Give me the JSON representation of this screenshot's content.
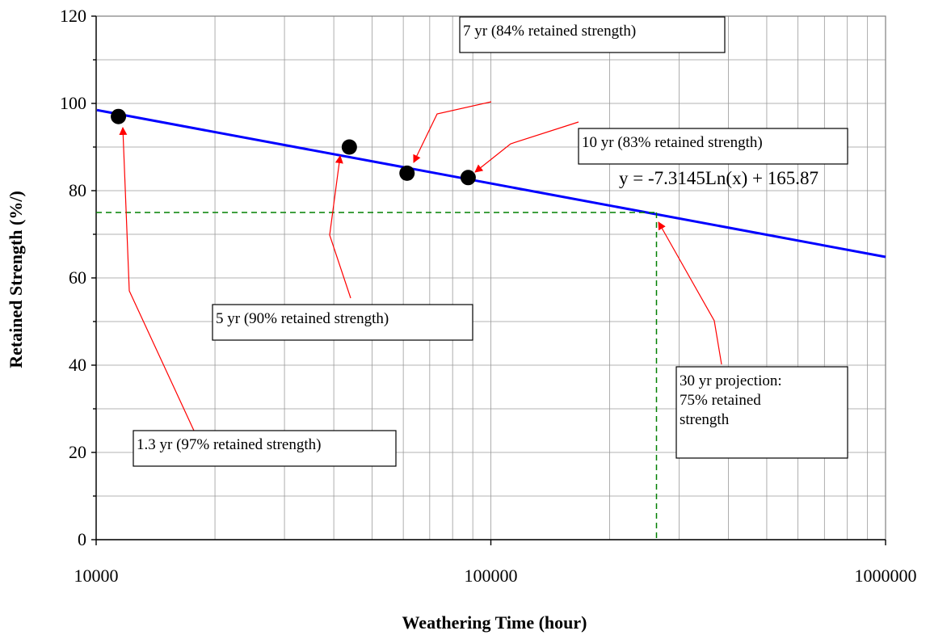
{
  "chart_data": {
    "type": "scatter",
    "title": "",
    "xlabel": "Weathering Time (hour)",
    "ylabel": "Retained Strength (%/)",
    "x_scale": "log",
    "xlim": [
      10000,
      1000000
    ],
    "ylim": [
      0,
      120
    ],
    "x_ticks": [
      10000,
      100000,
      1000000
    ],
    "x_tick_labels": [
      "10000",
      "100000",
      "1000000"
    ],
    "y_ticks": [
      0,
      20,
      40,
      60,
      80,
      100,
      120
    ],
    "y_tick_labels": [
      "0",
      "20",
      "40",
      "60",
      "80",
      "100",
      "120"
    ],
    "grid": true,
    "series": [
      {
        "marker": "circle",
        "color": "#000000",
        "x": [
          11388,
          43800,
          61320,
          87600
        ],
        "y": [
          97,
          90,
          84,
          83
        ]
      }
    ],
    "trendline": {
      "equation": "y = -7.3145Ln(x) + 165.87",
      "slope": -7.3145,
      "intercept": 165.87,
      "color": "#0000ff"
    },
    "projection": {
      "x": 262800,
      "y": 75,
      "color": "#008000",
      "style": "dashed"
    },
    "annotations": [
      {
        "id": "ann-13yr",
        "lines": [
          "1.3 yr (97% retained strength)"
        ],
        "target": [
          11388,
          97
        ]
      },
      {
        "id": "ann-5yr",
        "lines": [
          "5 yr (90% retained strength)"
        ],
        "target": [
          43800,
          90
        ]
      },
      {
        "id": "ann-7yr",
        "lines": [
          "7 yr (84% retained strength)"
        ],
        "target": [
          61320,
          84
        ]
      },
      {
        "id": "ann-10yr",
        "lines": [
          "10 yr (83% retained strength)"
        ],
        "target": [
          87600,
          83
        ]
      },
      {
        "id": "ann-30yr",
        "lines": [
          "30 yr projection:",
          "75% retained",
          "strength"
        ],
        "target": [
          262800,
          75
        ]
      }
    ],
    "arrow_color": "#ff0000"
  }
}
